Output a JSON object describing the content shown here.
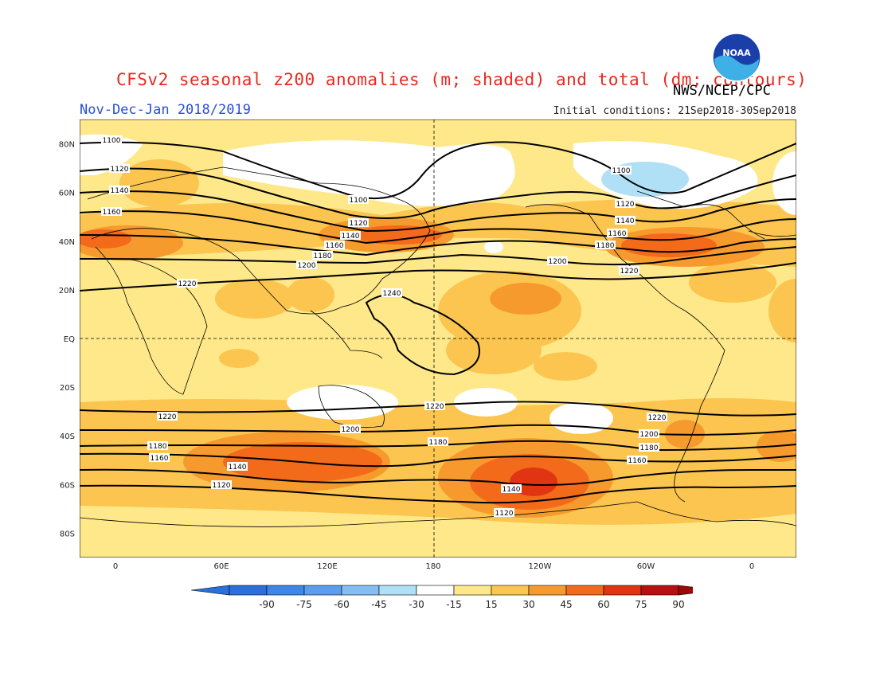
{
  "title": "CFSv2 seasonal z200 anomalies (m; shaded) and total (dm; contours)",
  "subtitle": "Nov-Dec-Jan 2018/2019",
  "agency": "NWS/NCEP/CPC",
  "initial_conditions": "Initial conditions: 21Sep2018-30Sep2018",
  "logo_text": "NOAA",
  "lat_ticks": [
    "80N",
    "60N",
    "40N",
    "20N",
    "EQ",
    "20S",
    "40S",
    "60S",
    "80S"
  ],
  "lon_ticks": [
    "0",
    "60E",
    "120E",
    "180",
    "120W",
    "60W",
    "0"
  ],
  "colorbar": {
    "labels": [
      "-90",
      "-75",
      "-60",
      "-45",
      "-30",
      "-15",
      "15",
      "30",
      "45",
      "60",
      "75",
      "90"
    ],
    "colors": [
      "#2a6fdb",
      "#3e86e8",
      "#5a9eef",
      "#84bff4",
      "#b0e0f6",
      "#ffffff",
      "#fee88a",
      "#fbc54f",
      "#f79a2d",
      "#f36a1a",
      "#e03412",
      "#b81010"
    ]
  },
  "contour_labels": [
    "1100",
    "1120",
    "1140",
    "1160",
    "1180",
    "1200",
    "1220",
    "1240"
  ],
  "contour_levels_dm": [
    1100,
    1120,
    1140,
    1160,
    1180,
    1200,
    1220,
    1240
  ]
}
